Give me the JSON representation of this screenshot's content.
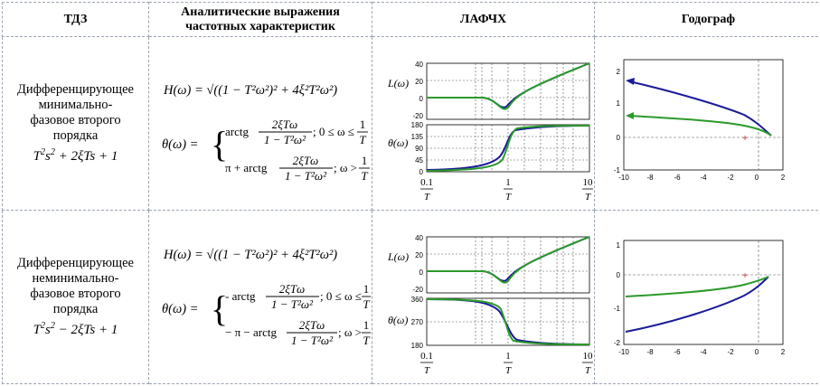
{
  "headers": {
    "tdz": "ТДЗ",
    "analytic": "Аналитические выражения частотных характеристик",
    "lafchh": "ЛАФЧХ",
    "hodograph": "Годограф"
  },
  "rows": [
    {
      "name": "Дифференцирующее\nминимально-\nфазовое второго\nпорядка",
      "poly_parts": [
        "T",
        "2",
        "s",
        "2",
        " + 2ξTs + 1"
      ],
      "H": "H(ω) = √((1 − T²ω²)² + 4ξ²T²ω²)",
      "theta_lhs": "θ(ω) =",
      "case1_pre": "arctg",
      "case1_num": "2ξTω",
      "case1_den": "1 − T²ω²",
      "case1_cond": "; 0 ≤ ω ≤",
      "case2_pre": "π + arctg",
      "case2_num": "2ξTω",
      "case2_den": "1 − T²ω²",
      "case2_cond": "; ω >",
      "frac_one": "1",
      "frac_T": "T",
      "L_label": "L(ω)",
      "theta_label": "θ(ω)",
      "L_ticks": [
        "40",
        "20",
        "0",
        "-20"
      ],
      "theta_ticks": [
        "180",
        "135",
        "90",
        "45",
        "0"
      ],
      "x_ticks": [
        "0.1",
        "1",
        "10"
      ],
      "hod_yticks": [
        "2",
        "1",
        "0",
        "-1"
      ],
      "hod_xticks": [
        "-10",
        "-8",
        "-6",
        "-4",
        "-2",
        "0",
        "2"
      ]
    },
    {
      "name": "Дифференцирующее\nнеминимально-\nфазовое второго\nпорядка",
      "poly_parts": [
        "T",
        "2",
        "s",
        "2",
        " − 2ξTs + 1"
      ],
      "H": "H(ω) = √((1 − T²ω²)² + 4ξ²T²ω²)",
      "theta_lhs": "θ(ω) =",
      "case1_pre": "- arctg",
      "case1_num": "2ξTω",
      "case1_den": "1 − T²ω²",
      "case1_cond": "; 0 ≤ ω ≤",
      "case2_pre": "− π − arctg",
      "case2_num": "2ξTω",
      "case2_den": "1 − T²ω²",
      "case2_cond": "; ω >",
      "frac_one": "1",
      "frac_T": "T",
      "L_label": "L(ω)",
      "theta_label": "θ(ω)",
      "L_ticks": [
        "40",
        "20",
        "0",
        "-20"
      ],
      "theta_ticks": [
        "360",
        "270",
        "180"
      ],
      "x_ticks": [
        "0.1",
        "1",
        "10"
      ],
      "hod_yticks": [
        "1",
        "0",
        "-1",
        "-2"
      ],
      "hod_xticks": [
        "-10",
        "-8",
        "-6",
        "-4",
        "-2",
        "0",
        "2"
      ]
    }
  ],
  "colors": {
    "blue": "#1a1a9a",
    "green": "#2a9a2a",
    "marker": "#cc2222"
  }
}
